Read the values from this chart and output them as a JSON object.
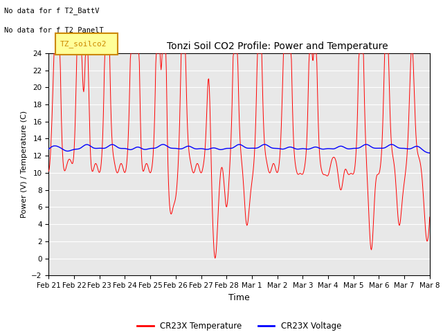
{
  "title": "Tonzi Soil CO2 Profile: Power and Temperature",
  "xlabel": "Time",
  "ylabel": "Power (V) / Temperature (C)",
  "ylim": [
    -2,
    24
  ],
  "yticks": [
    -2,
    0,
    2,
    4,
    6,
    8,
    10,
    12,
    14,
    16,
    18,
    20,
    22,
    24
  ],
  "xtick_labels": [
    "Feb 21",
    "Feb 22",
    "Feb 23",
    "Feb 24",
    "Feb 25",
    "Feb 26",
    "Feb 27",
    "Feb 28",
    "Mar 1",
    "Mar 2",
    "Mar 3",
    "Mar 4",
    "Mar 5",
    "Mar 6",
    "Mar 7",
    "Mar 8"
  ],
  "note1": "No data for f T2_BattV",
  "note2": "No data for f T2_PanelT",
  "legend_label_box": "TZ_soilco2",
  "legend_temp": "CR23X Temperature",
  "legend_volt": "CR23X Voltage",
  "temp_color": "#ff0000",
  "volt_color": "#0000ff",
  "bg_color": "#ffffff",
  "plot_bg_color": "#e8e8e8",
  "grid_color": "#ffffff",
  "note_color": "#000000",
  "box_color": "#ffff99",
  "box_edge_color": "#cc8800"
}
